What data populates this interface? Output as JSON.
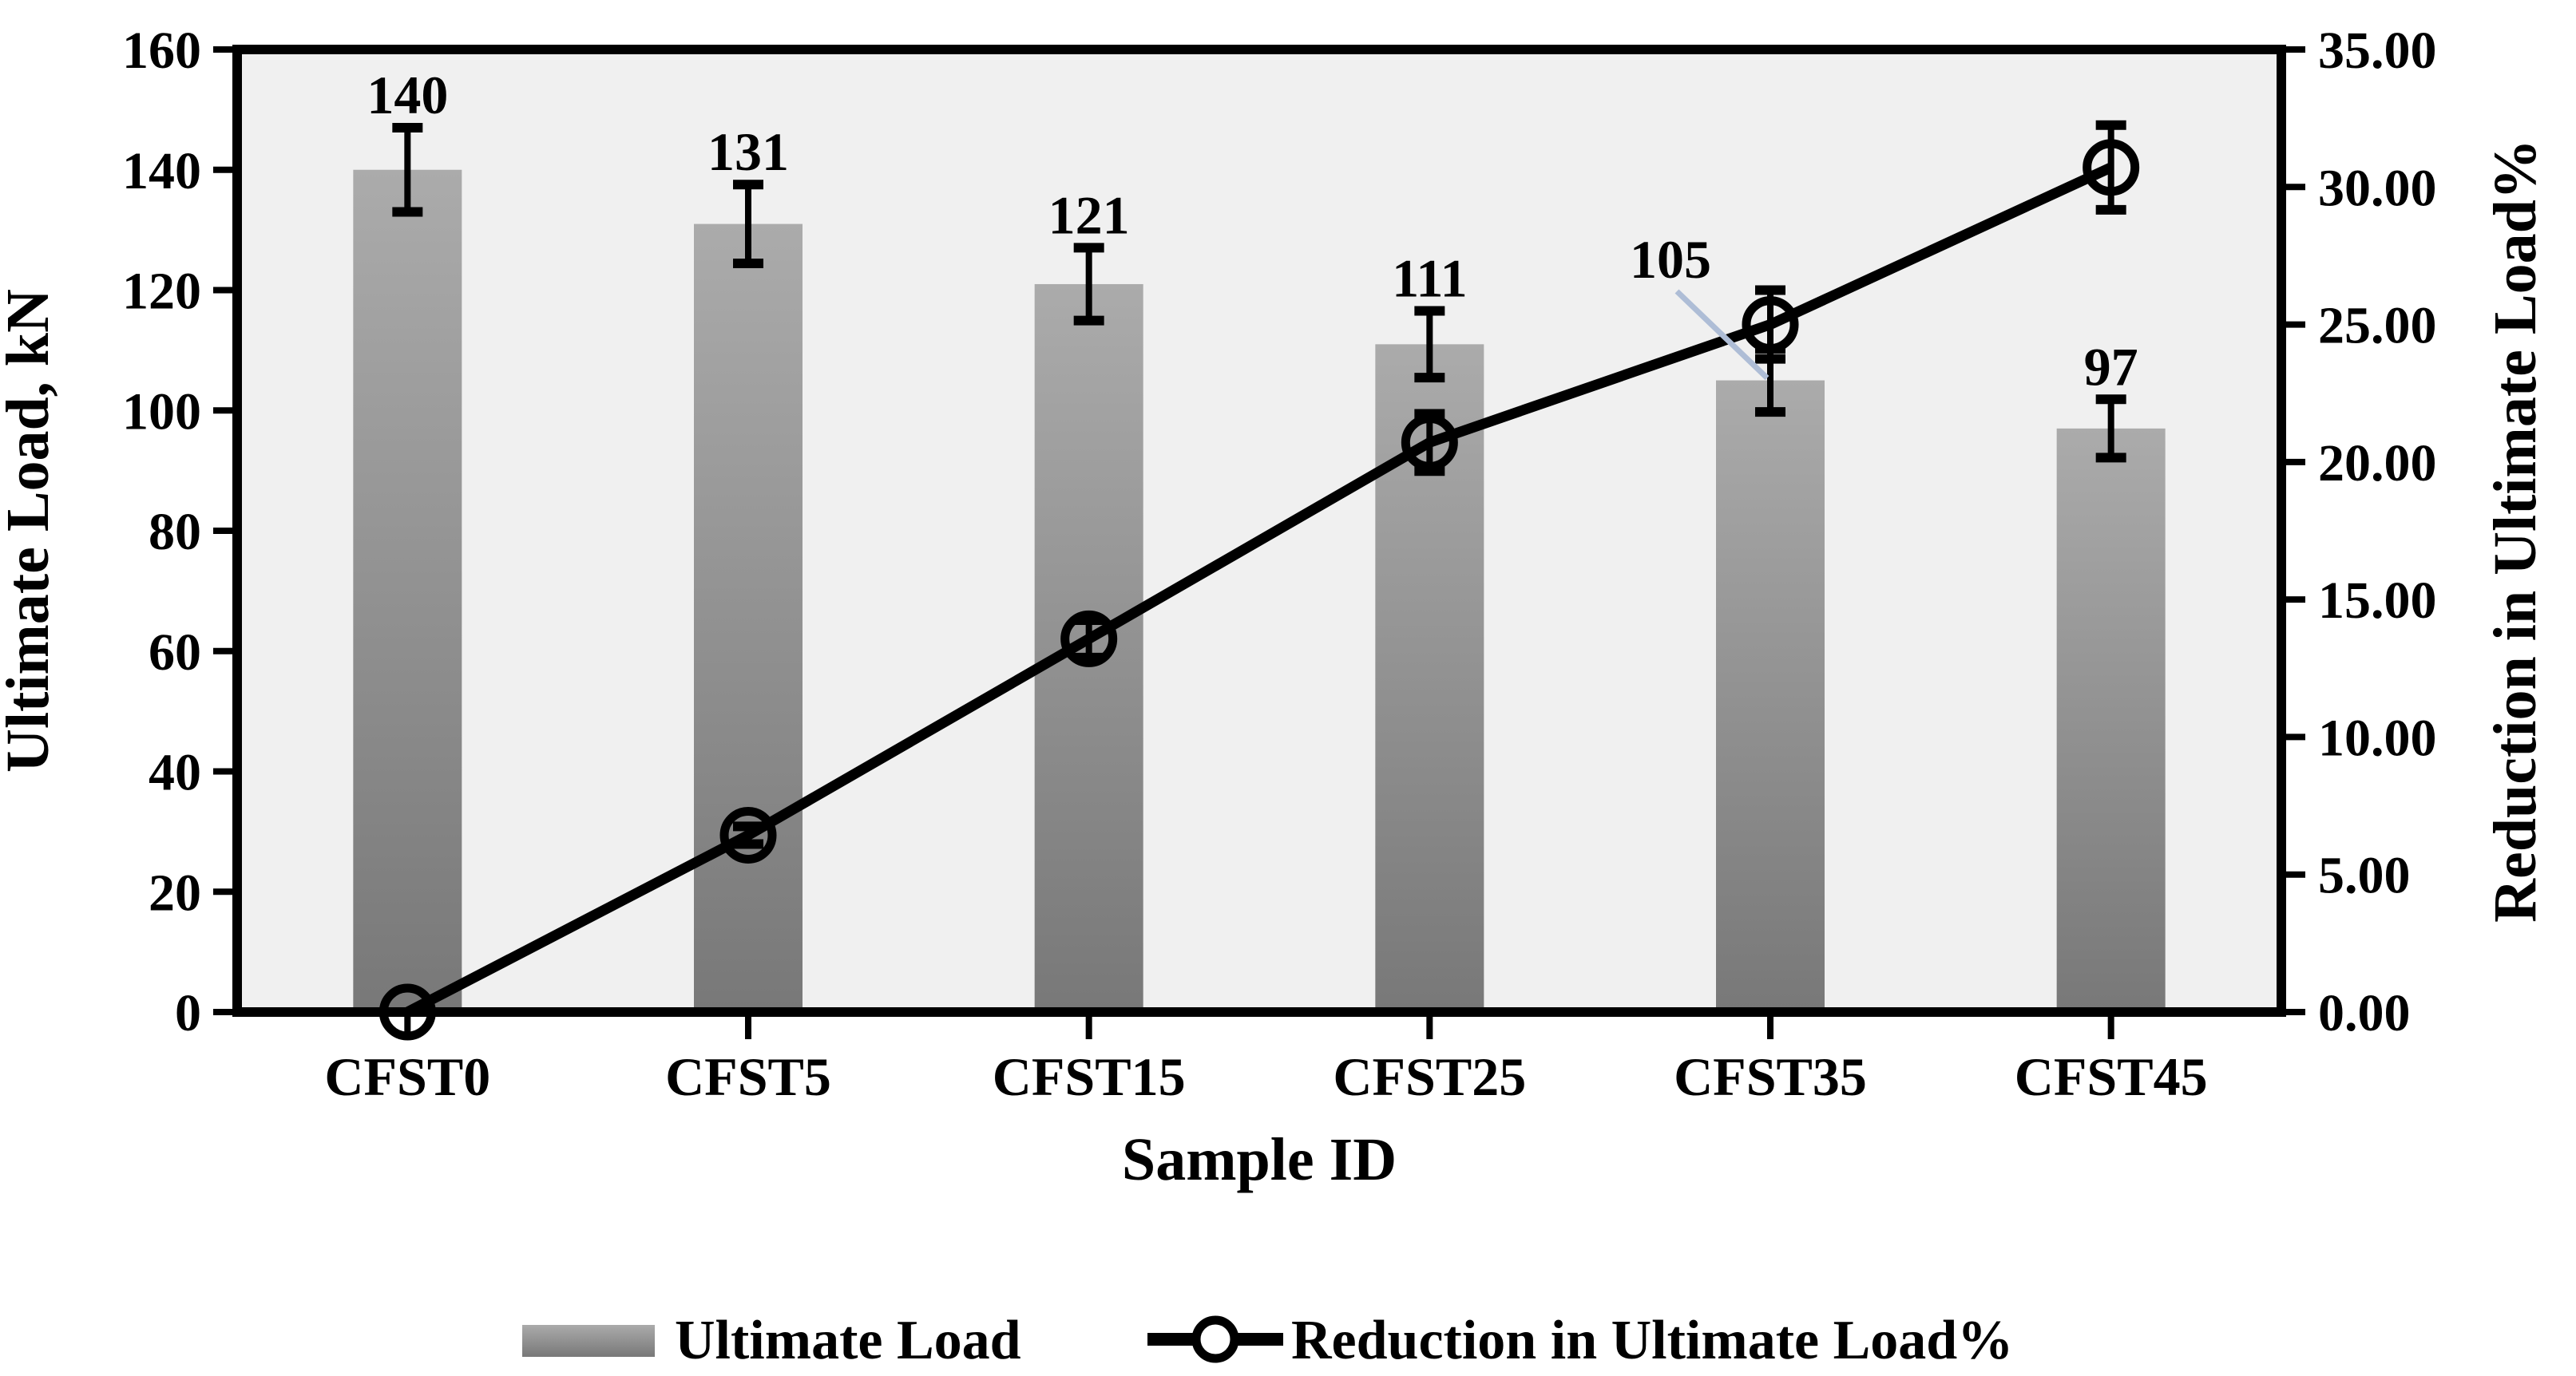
{
  "figure": {
    "background_color": "#ffffff",
    "plot_background_color": "#f0f0f0",
    "axis_color": "#000000",
    "bar_color_top": "#ababab",
    "bar_color_bottom": "#787878",
    "line_color": "#000000",
    "error_bar_color": "#000000",
    "leader_line_color": "#aebdd6",
    "marker_style": "open-circle"
  },
  "chart_data": {
    "type": "bar",
    "subtype": "bar-line-combo-dual-axis",
    "grid": "off",
    "categories": [
      "CFST0",
      "CFST5",
      "CFST15",
      "CFST25",
      "CFST35",
      "CFST45"
    ],
    "series": [
      {
        "name": "Ultimate Load",
        "chart_type": "bar",
        "axis": "left",
        "values": [
          140,
          131,
          121,
          111,
          105,
          97
        ],
        "error_bars": [
          7.0,
          6.55,
          6.05,
          5.55,
          5.25,
          4.85
        ],
        "data_labels": [
          "140",
          "131",
          "121",
          "111",
          "105",
          "97"
        ]
      },
      {
        "name": "Reduction in Ultimate Load%",
        "chart_type": "line",
        "axis": "right",
        "values": [
          0.0,
          6.43,
          13.57,
          20.71,
          25.0,
          30.71
        ],
        "error_bars": [
          0,
          0.32,
          0.68,
          1.04,
          1.25,
          1.54
        ],
        "marker": "open-circle"
      }
    ],
    "x_axis": {
      "title": "Sample ID"
    },
    "left_axis": {
      "title": "Ultimate Load, kN",
      "min": 0,
      "max": 160,
      "step": 20,
      "tick_labels": [
        "0",
        "20",
        "40",
        "60",
        "80",
        "100",
        "120",
        "140",
        "160"
      ]
    },
    "right_axis": {
      "title": "Reduction in Ultimate Load%",
      "min": 0,
      "max": 35,
      "step": 5,
      "tick_labels": [
        "0.00",
        "5.00",
        "10.00",
        "15.00",
        "20.00",
        "25.00",
        "30.00",
        "35.00"
      ]
    },
    "legend": {
      "position": "bottom",
      "entries": [
        {
          "label": "Ultimate Load",
          "symbol": "bar-swatch"
        },
        {
          "label": "Reduction in Ultimate Load%",
          "symbol": "line-open-circle"
        }
      ]
    },
    "offset_label": {
      "index": 4,
      "text": "105",
      "has_leader_line": true
    }
  }
}
